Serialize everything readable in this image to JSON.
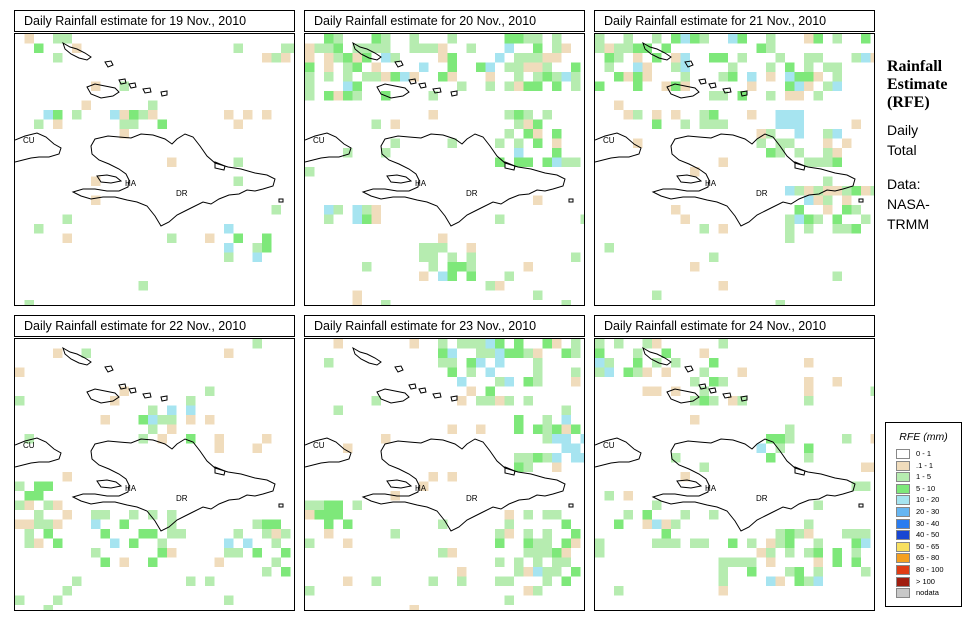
{
  "panels": [
    {
      "title": "Daily Rainfall estimate for  19 Nov., 2010"
    },
    {
      "title": "Daily Rainfall estimate for  20 Nov., 2010"
    },
    {
      "title": "Daily Rainfall estimate for  21 Nov., 2010"
    },
    {
      "title": "Daily Rainfall estimate for  22 Nov., 2010"
    },
    {
      "title": "Daily Rainfall estimate for  23 Nov., 2010"
    },
    {
      "title": "Daily Rainfall estimate for  24 Nov., 2010"
    }
  ],
  "map_labels": {
    "cu": "CU",
    "ha": "HA",
    "dr": "DR"
  },
  "side": {
    "title_line1": "Rainfall",
    "title_line2": "Estimate",
    "title_line3": "(RFE)",
    "daily_line1": "Daily",
    "daily_line2": "Total",
    "data_line1": "Data:",
    "data_line2": "NASA-",
    "data_line3": "TRMM"
  },
  "legend": {
    "title": "RFE (mm)",
    "items": [
      {
        "label": "0 - 1",
        "color": "#ffffff"
      },
      {
        "label": ".1 - 1",
        "color": "#f0dcbc"
      },
      {
        "label": "1 - 5",
        "color": "#b6ecb0"
      },
      {
        "label": "5 - 10",
        "color": "#7ee87a"
      },
      {
        "label": "10 - 20",
        "color": "#a6e4f0"
      },
      {
        "label": "20 - 30",
        "color": "#66b6f2"
      },
      {
        "label": "30 - 40",
        "color": "#2a7cf0"
      },
      {
        "label": "40 - 50",
        "color": "#1846d2"
      },
      {
        "label": "50 - 65",
        "color": "#f8e060"
      },
      {
        "label": "65 - 80",
        "color": "#f5a020"
      },
      {
        "label": "80 - 100",
        "color": "#e03c14"
      },
      {
        "label": "> 100",
        "color": "#a01e10"
      },
      {
        "label": "nodata",
        "color": "#c8c8c8"
      }
    ]
  }
}
